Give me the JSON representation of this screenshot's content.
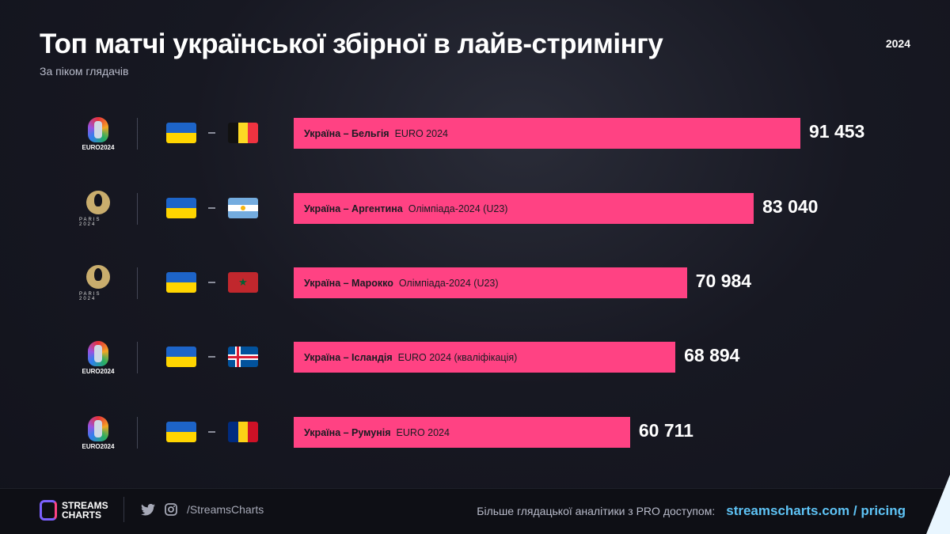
{
  "header": {
    "title": "Топ матчі української збірної в лайв-стримінгу",
    "subtitle": "За піком глядачів",
    "year": "2024"
  },
  "colors": {
    "bar": "#ff4283",
    "background": "#12131d",
    "link": "#5ec3f5"
  },
  "chart_data": {
    "type": "bar",
    "orientation": "horizontal",
    "title": "Топ матчі української збірної в лайв-стримінгу",
    "subtitle": "За піком глядачів",
    "xlim": [
      0,
      91453
    ],
    "categories": [
      "Україна – Бельгія",
      "Україна – Аргентина",
      "Україна – Марокко",
      "Україна – Ісландія",
      "Україна – Румунія"
    ],
    "values": [
      91453,
      83040,
      70984,
      68894,
      60711
    ],
    "rows": [
      {
        "match": "Україна – Бельгія",
        "tournament": "EURO 2024",
        "value": 91453,
        "value_label": "91 453",
        "logo": "euro2024",
        "logo_text": "EURO2024",
        "opponent_flag": "belgium"
      },
      {
        "match": "Україна – Аргентина",
        "tournament": "Олімпіада-2024 (U23)",
        "value": 83040,
        "value_label": "83 040",
        "logo": "paris2024",
        "logo_text": "PARIS 2024",
        "opponent_flag": "argentina"
      },
      {
        "match": "Україна – Марокко",
        "tournament": "Олімпіада-2024 (U23)",
        "value": 70984,
        "value_label": "70 984",
        "logo": "paris2024",
        "logo_text": "PARIS 2024",
        "opponent_flag": "morocco"
      },
      {
        "match": "Україна – Ісландія",
        "tournament": "EURO 2024 (кваліфікація)",
        "value": 68894,
        "value_label": "68 894",
        "logo": "euro2024",
        "logo_text": "EURO2024",
        "opponent_flag": "iceland"
      },
      {
        "match": "Україна – Румунія",
        "tournament": "EURO 2024",
        "value": 60711,
        "value_label": "60 711",
        "logo": "euro2024",
        "logo_text": "EURO2024",
        "opponent_flag": "romania"
      }
    ]
  },
  "footer": {
    "brand_line1": "STREAMS",
    "brand_line2": "CHARTS",
    "handle": "/StreamsCharts",
    "promo": "Більше глядацької аналітики з PRO доступом:",
    "link": "streamscharts.com / pricing",
    "icons": [
      "twitter-icon",
      "instagram-icon"
    ]
  }
}
